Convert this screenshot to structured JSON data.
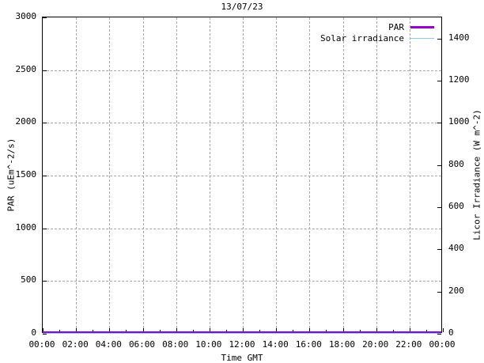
{
  "chart_data": {
    "type": "line",
    "title": "13/07/23",
    "xlabel": "Time GMT",
    "ylabel_left": "PAR (uEm^-2/s)",
    "ylabel_right": "Licor Irradiance (W m^-2)",
    "x_tick_labels": [
      "00:00",
      "02:00",
      "04:00",
      "06:00",
      "08:00",
      "10:00",
      "12:00",
      "14:00",
      "16:00",
      "18:00",
      "20:00",
      "22:00",
      "00:00"
    ],
    "x_minor_tick_interval_hours": 1,
    "x_range_hours": [
      0,
      24
    ],
    "y_left_axis": {
      "min": 0,
      "max": 3000,
      "tick_step": 500,
      "tick_labels": [
        "0",
        "500",
        "1000",
        "1500",
        "2000",
        "2500",
        "3000"
      ]
    },
    "y_right_axis": {
      "min": 0,
      "max": 1500,
      "tick_step": 200,
      "tick_labels": [
        "0",
        "200",
        "400",
        "600",
        "800",
        "1000",
        "1200",
        "1400"
      ]
    },
    "grid": {
      "show": true,
      "color": "#a6a6a6",
      "style": "dashed"
    },
    "legend": {
      "position": "top-right-inside",
      "entries": [
        {
          "label": "PAR",
          "color": "#9400d3",
          "line_width": 3
        },
        {
          "label": "Solar irradiance",
          "color": "#87ceeb",
          "line_width": 1
        }
      ]
    },
    "series": [
      {
        "name": "Solar irradiance",
        "axis": "right",
        "color": "#87ceeb",
        "line_width": 1,
        "x": [
          "00:00",
          "24:00"
        ],
        "values": [
          0,
          0
        ],
        "note": "flat at 0 all day"
      },
      {
        "name": "PAR",
        "axis": "left",
        "color": "#9400d3",
        "line_width": 3,
        "x": [
          "00:00",
          "24:00"
        ],
        "values": [
          0,
          0
        ],
        "note": "flat at 0 all day"
      }
    ],
    "colors": {
      "background": "#ffffff",
      "border": "#000000",
      "text": "#000000"
    }
  }
}
